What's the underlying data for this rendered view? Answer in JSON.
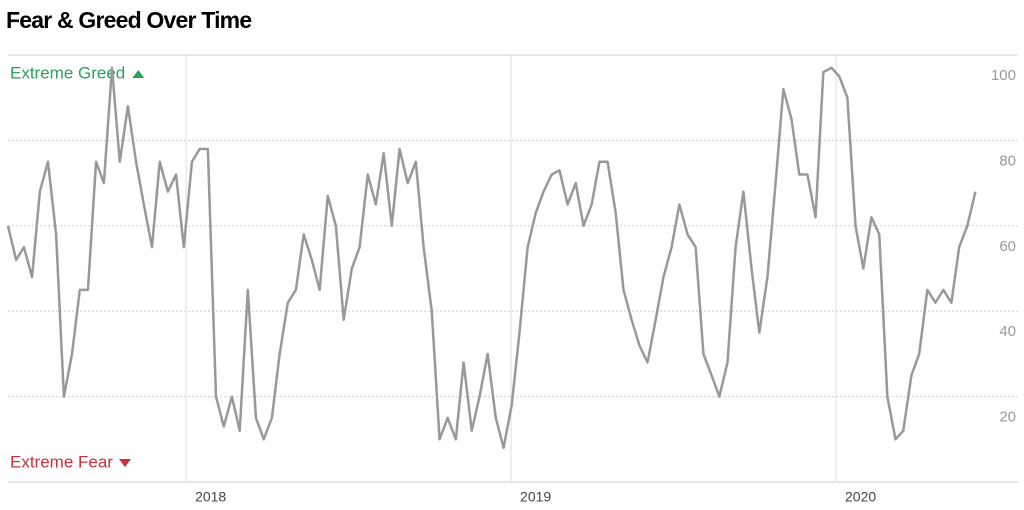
{
  "chart_data": {
    "type": "line",
    "title": "Fear & Greed Over Time",
    "annotations": {
      "top": "Extreme Greed",
      "bottom": "Extreme Fear"
    },
    "annotation_colors": {
      "top": "#2e9e5b",
      "bottom": "#c8323c"
    },
    "color": "#999999",
    "grid": true,
    "xlim": [
      2017.452,
      2020.56
    ],
    "xticks": [
      2018,
      2019,
      2020
    ],
    "ylim": [
      0,
      100
    ],
    "yticks": [
      20,
      40,
      60,
      80,
      100
    ],
    "x": [
      2017.452,
      2017.477,
      2017.501,
      2017.526,
      2017.55,
      2017.575,
      2017.6,
      2017.624,
      2017.649,
      2017.673,
      2017.698,
      2017.723,
      2017.747,
      2017.772,
      2017.796,
      2017.821,
      2017.846,
      2017.87,
      2017.895,
      2017.919,
      2017.944,
      2017.969,
      2017.993,
      2018.018,
      2018.042,
      2018.067,
      2018.092,
      2018.116,
      2018.141,
      2018.165,
      2018.19,
      2018.215,
      2018.239,
      2018.264,
      2018.288,
      2018.313,
      2018.338,
      2018.362,
      2018.387,
      2018.411,
      2018.436,
      2018.461,
      2018.485,
      2018.51,
      2018.534,
      2018.559,
      2018.584,
      2018.608,
      2018.633,
      2018.657,
      2018.682,
      2018.707,
      2018.731,
      2018.756,
      2018.78,
      2018.805,
      2018.83,
      2018.854,
      2018.879,
      2018.903,
      2018.928,
      2018.953,
      2018.977,
      2019.002,
      2019.026,
      2019.051,
      2019.076,
      2019.1,
      2019.125,
      2019.149,
      2019.174,
      2019.199,
      2019.223,
      2019.248,
      2019.272,
      2019.297,
      2019.322,
      2019.346,
      2019.371,
      2019.395,
      2019.42,
      2019.445,
      2019.469,
      2019.494,
      2019.518,
      2019.543,
      2019.568,
      2019.592,
      2019.617,
      2019.641,
      2019.666,
      2019.691,
      2019.715,
      2019.74,
      2019.764,
      2019.789,
      2019.814,
      2019.838,
      2019.863,
      2019.887,
      2019.912,
      2019.937,
      2019.961,
      2019.986,
      2020.01,
      2020.035,
      2020.06,
      2020.084,
      2020.109,
      2020.133,
      2020.158,
      2020.183,
      2020.207,
      2020.232,
      2020.256,
      2020.281,
      2020.306,
      2020.33,
      2020.355,
      2020.379,
      2020.404,
      2020.429
    ],
    "values": [
      60,
      52,
      55,
      48,
      68,
      75,
      58,
      20,
      30,
      45,
      45,
      75,
      70,
      97,
      75,
      88,
      75,
      65,
      55,
      75,
      68,
      72,
      55,
      75,
      78,
      78,
      20,
      13,
      20,
      12,
      45,
      15,
      10,
      15,
      30,
      42,
      45,
      58,
      52,
      45,
      67,
      60,
      38,
      50,
      55,
      72,
      65,
      77,
      60,
      78,
      70,
      75,
      55,
      40,
      10,
      15,
      10,
      28,
      12,
      20,
      30,
      15,
      8,
      18,
      35,
      55,
      63,
      68,
      72,
      73,
      65,
      70,
      60,
      65,
      75,
      75,
      63,
      45,
      38,
      32,
      28,
      38,
      48,
      55,
      65,
      58,
      55,
      30,
      25,
      20,
      28,
      55,
      68,
      50,
      35,
      48,
      70,
      92,
      85,
      72,
      72,
      62,
      96,
      97,
      95,
      90,
      60,
      50,
      62,
      58,
      20,
      10,
      12,
      25,
      30,
      45,
      42,
      45,
      42,
      55,
      60,
      68
    ]
  }
}
